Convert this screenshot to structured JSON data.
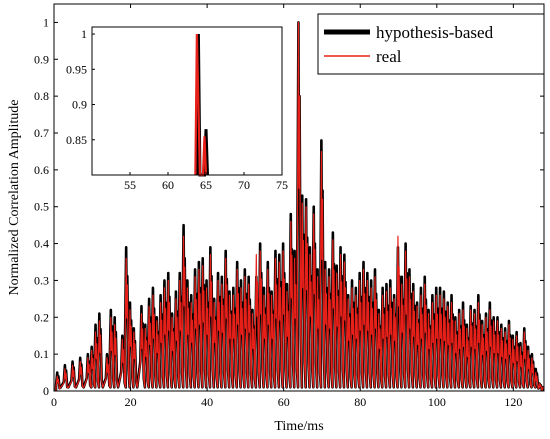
{
  "chart_data": {
    "type": "line",
    "xlabel": "Time/ms",
    "ylabel": "Normalized Correlation Amplitude",
    "xlim": [
      0,
      128
    ],
    "ylim": [
      0,
      1.05
    ],
    "xticks": [
      0,
      20,
      40,
      60,
      80,
      100,
      120
    ],
    "yticks": [
      0,
      0.1,
      0.2,
      0.3,
      0.4,
      0.5,
      0.6,
      0.7,
      0.8,
      0.9,
      1
    ],
    "grid": false,
    "legend": {
      "position": "top-right",
      "entries": [
        "hypothesis-based",
        "real"
      ]
    },
    "colors": {
      "hypothesis-based": "#000000",
      "real": "#e8201a"
    },
    "series": [
      {
        "name": "hypothesis-based",
        "x": [
          1,
          3,
          5,
          7,
          9,
          10,
          11,
          12,
          14,
          15,
          16,
          18,
          19,
          20,
          21,
          23,
          24,
          25,
          26,
          27,
          28,
          29,
          30,
          31,
          32,
          33,
          34,
          35,
          36,
          37,
          38,
          39,
          40,
          41,
          42,
          43,
          44,
          45,
          46,
          47,
          48,
          49,
          50,
          51,
          52,
          53,
          54,
          55,
          56,
          57,
          58,
          59,
          60,
          61,
          62,
          63,
          64,
          65,
          66,
          67,
          68,
          69,
          70,
          71,
          72,
          73,
          74,
          75,
          76,
          77,
          78,
          79,
          80,
          81,
          82,
          83,
          84,
          85,
          86,
          87,
          88,
          89,
          90,
          91,
          92,
          93,
          94,
          95,
          96,
          97,
          98,
          99,
          100,
          101,
          102,
          103,
          104,
          105,
          106,
          107,
          108,
          109,
          110,
          111,
          112,
          113,
          114,
          115,
          116,
          117,
          118,
          119,
          120,
          121,
          122,
          123,
          124,
          125,
          126,
          127
        ],
        "y": [
          0.05,
          0.07,
          0.08,
          0.09,
          0.1,
          0.12,
          0.18,
          0.21,
          0.1,
          0.22,
          0.2,
          0.15,
          0.39,
          0.24,
          0.17,
          0.23,
          0.18,
          0.25,
          0.28,
          0.2,
          0.26,
          0.3,
          0.32,
          0.21,
          0.27,
          0.32,
          0.45,
          0.3,
          0.26,
          0.33,
          0.35,
          0.36,
          0.3,
          0.39,
          0.25,
          0.32,
          0.31,
          0.38,
          0.27,
          0.28,
          0.35,
          0.3,
          0.33,
          0.31,
          0.22,
          0.31,
          0.4,
          0.28,
          0.35,
          0.27,
          0.38,
          0.37,
          0.4,
          0.29,
          0.48,
          0.38,
          1.0,
          0.53,
          0.52,
          0.39,
          0.5,
          0.33,
          0.68,
          0.35,
          0.33,
          0.43,
          0.34,
          0.39,
          0.37,
          0.26,
          0.3,
          0.28,
          0.32,
          0.35,
          0.32,
          0.3,
          0.33,
          0.22,
          0.28,
          0.29,
          0.3,
          0.26,
          0.39,
          0.31,
          0.4,
          0.33,
          0.29,
          0.24,
          0.28,
          0.31,
          0.22,
          0.26,
          0.28,
          0.28,
          0.27,
          0.24,
          0.26,
          0.2,
          0.22,
          0.24,
          0.18,
          0.23,
          0.22,
          0.26,
          0.19,
          0.21,
          0.24,
          0.2,
          0.2,
          0.18,
          0.17,
          0.19,
          0.15,
          0.16,
          0.13,
          0.17,
          0.12,
          0.1,
          0.06,
          0.02
        ]
      },
      {
        "name": "real",
        "x": [
          1,
          3,
          5,
          7,
          9,
          10,
          11,
          12,
          14,
          15,
          16,
          18,
          19,
          20,
          21,
          23,
          24,
          25,
          26,
          27,
          28,
          29,
          30,
          31,
          32,
          33,
          34,
          35,
          36,
          37,
          38,
          39,
          40,
          41,
          42,
          43,
          44,
          45,
          46,
          47,
          48,
          49,
          50,
          51,
          52,
          53,
          54,
          55,
          56,
          57,
          58,
          59,
          60,
          61,
          62,
          63,
          64,
          65,
          66,
          67,
          68,
          69,
          70,
          71,
          72,
          73,
          74,
          75,
          76,
          77,
          78,
          79,
          80,
          81,
          82,
          83,
          84,
          85,
          86,
          87,
          88,
          89,
          90,
          91,
          92,
          93,
          94,
          95,
          96,
          97,
          98,
          99,
          100,
          101,
          102,
          103,
          104,
          105,
          106,
          107,
          108,
          109,
          110,
          111,
          112,
          113,
          114,
          115,
          116,
          117,
          118,
          119,
          120,
          121,
          122,
          123,
          124,
          125,
          126,
          127
        ],
        "y": [
          0.04,
          0.06,
          0.07,
          0.08,
          0.09,
          0.11,
          0.16,
          0.19,
          0.09,
          0.2,
          0.18,
          0.14,
          0.36,
          0.22,
          0.16,
          0.21,
          0.17,
          0.23,
          0.26,
          0.19,
          0.24,
          0.28,
          0.3,
          0.2,
          0.25,
          0.3,
          0.42,
          0.28,
          0.24,
          0.31,
          0.33,
          0.34,
          0.28,
          0.37,
          0.24,
          0.3,
          0.29,
          0.36,
          0.26,
          0.26,
          0.33,
          0.28,
          0.31,
          0.29,
          0.21,
          0.37,
          0.38,
          0.26,
          0.33,
          0.26,
          0.36,
          0.35,
          0.38,
          0.27,
          0.46,
          0.36,
          1.0,
          0.51,
          0.5,
          0.37,
          0.48,
          0.31,
          0.65,
          0.33,
          0.31,
          0.41,
          0.32,
          0.37,
          0.35,
          0.25,
          0.28,
          0.26,
          0.3,
          0.33,
          0.3,
          0.28,
          0.31,
          0.21,
          0.26,
          0.27,
          0.28,
          0.25,
          0.42,
          0.29,
          0.38,
          0.31,
          0.27,
          0.23,
          0.26,
          0.29,
          0.21,
          0.24,
          0.26,
          0.26,
          0.25,
          0.23,
          0.24,
          0.19,
          0.21,
          0.22,
          0.17,
          0.22,
          0.21,
          0.24,
          0.18,
          0.2,
          0.22,
          0.19,
          0.19,
          0.17,
          0.16,
          0.18,
          0.14,
          0.15,
          0.12,
          0.16,
          0.11,
          0.09,
          0.05,
          0.02
        ]
      }
    ],
    "inset": {
      "type": "line",
      "xlim": [
        50,
        75
      ],
      "ylim": [
        0.8,
        1.01
      ],
      "xticks": [
        55,
        60,
        65,
        70,
        75
      ],
      "yticks": [
        0.85,
        0.9,
        0.95,
        1
      ],
      "series": [
        {
          "name": "hypothesis-based",
          "x": [
            63.8,
            64.0,
            64.2,
            64.8,
            65.0,
            65.2
          ],
          "y": [
            0.8,
            1.0,
            0.8,
            0.8,
            0.865,
            0.8
          ]
        },
        {
          "name": "real",
          "x": [
            63.6,
            63.8,
            64.2,
            64.6,
            64.8,
            65.0
          ],
          "y": [
            0.8,
            1.0,
            0.8,
            0.8,
            0.855,
            0.8
          ]
        }
      ]
    }
  }
}
